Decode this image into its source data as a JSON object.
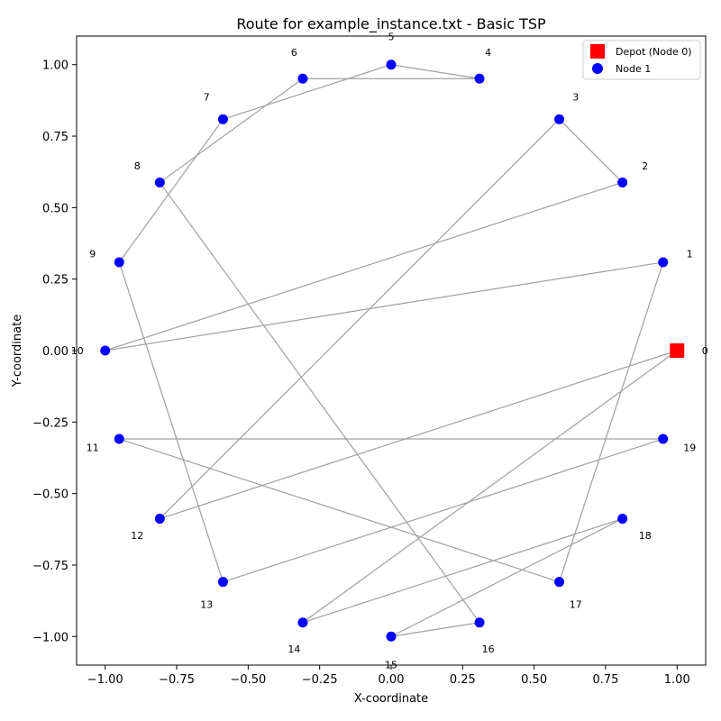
{
  "chart_data": {
    "type": "scatter",
    "title": "Route for example_instance.txt - Basic TSP",
    "xlabel": "X-coordinate",
    "ylabel": "Y-coordinate",
    "xlim": [
      -1.1,
      1.1
    ],
    "ylim": [
      -1.1,
      1.1
    ],
    "x_ticks": [
      -1.0,
      -0.75,
      -0.5,
      -0.25,
      0.0,
      0.25,
      0.5,
      0.75,
      1.0
    ],
    "x_tick_labels": [
      "−1.00",
      "−0.75",
      "−0.50",
      "−0.25",
      "0.00",
      "0.25",
      "0.50",
      "0.75",
      "1.00"
    ],
    "y_ticks": [
      1.0,
      0.75,
      0.5,
      0.25,
      0.0,
      -0.25,
      -0.5,
      -0.75,
      -1.0
    ],
    "y_tick_labels": [
      "1.00",
      "0.75",
      "0.50",
      "0.25",
      "0.00",
      "−0.25",
      "−0.50",
      "−0.75",
      "−1.00"
    ],
    "grid": false,
    "legend": {
      "placement": "top-right",
      "entries": [
        {
          "label": "Depot (Node 0)",
          "marker": "square",
          "color": "#ff0000"
        },
        {
          "label": "Node 1",
          "marker": "circle",
          "color": "#0000ff"
        }
      ]
    },
    "colors": {
      "depot": "#ff0000",
      "node": "#0000ff",
      "route": "#a0a0a0"
    },
    "nodes": [
      {
        "id": "0",
        "x": 1.0,
        "y": 0.0
      },
      {
        "id": "1",
        "x": 0.951,
        "y": 0.309
      },
      {
        "id": "2",
        "x": 0.809,
        "y": 0.588
      },
      {
        "id": "3",
        "x": 0.588,
        "y": 0.809
      },
      {
        "id": "4",
        "x": 0.309,
        "y": 0.951
      },
      {
        "id": "5",
        "x": 0.0,
        "y": 1.0
      },
      {
        "id": "6",
        "x": -0.309,
        "y": 0.951
      },
      {
        "id": "7",
        "x": -0.588,
        "y": 0.809
      },
      {
        "id": "8",
        "x": -0.809,
        "y": 0.588
      },
      {
        "id": "9",
        "x": -0.951,
        "y": 0.309
      },
      {
        "id": "10",
        "x": -1.0,
        "y": 0.0
      },
      {
        "id": "11",
        "x": -0.951,
        "y": -0.309
      },
      {
        "id": "12",
        "x": -0.809,
        "y": -0.588
      },
      {
        "id": "13",
        "x": -0.588,
        "y": -0.809
      },
      {
        "id": "14",
        "x": -0.309,
        "y": -0.951
      },
      {
        "id": "15",
        "x": 0.0,
        "y": -1.0
      },
      {
        "id": "16",
        "x": 0.309,
        "y": -0.951
      },
      {
        "id": "17",
        "x": 0.588,
        "y": -0.809
      },
      {
        "id": "18",
        "x": 0.809,
        "y": -0.588
      },
      {
        "id": "19",
        "x": 0.951,
        "y": -0.309
      }
    ],
    "route": [
      0,
      12,
      3,
      2,
      10,
      1,
      17,
      11,
      19,
      13,
      9,
      7,
      5,
      4,
      6,
      8,
      16,
      15,
      18,
      14,
      0
    ]
  }
}
